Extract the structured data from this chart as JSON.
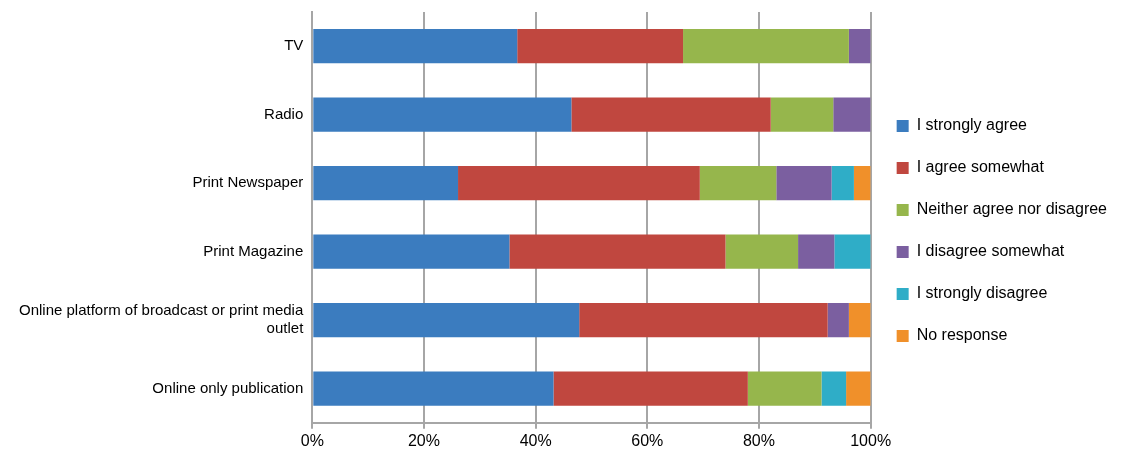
{
  "chart_data": {
    "type": "bar",
    "orientation": "horizontal",
    "stacked": true,
    "categories": [
      "TV",
      "Radio",
      "Print Newspaper",
      "Print Magazine",
      "Online platform of broadcast or print media outlet",
      "Online only publication"
    ],
    "series": [
      {
        "name": "I strongly agree",
        "color": "#3b7cbf",
        "values": [
          36.7,
          46.4,
          26.1,
          35.3,
          47.8,
          43.2
        ]
      },
      {
        "name": "I agree somewhat",
        "color": "#c0473f",
        "values": [
          29.7,
          35.7,
          43.3,
          38.7,
          44.5,
          34.8
        ]
      },
      {
        "name": "Neither agree nor disagree",
        "color": "#96b64c",
        "values": [
          29.7,
          11.2,
          13.7,
          13.0,
          0,
          13.2
        ]
      },
      {
        "name": "I disagree somewhat",
        "color": "#7b5fa0",
        "values": [
          3.9,
          6.7,
          9.9,
          6.5,
          3.8,
          0
        ]
      },
      {
        "name": "I strongly disagree",
        "color": "#2fadc7",
        "values": [
          0,
          0,
          4.0,
          6.5,
          0,
          4.4
        ]
      },
      {
        "name": "No response",
        "color": "#f0902a",
        "values": [
          0,
          0,
          3.0,
          0,
          3.9,
          4.4
        ]
      }
    ],
    "xlim": [
      0,
      100
    ],
    "xticks": [
      {
        "value": 0,
        "label": "0%"
      },
      {
        "value": 20,
        "label": "20%"
      },
      {
        "value": 40,
        "label": "40%"
      },
      {
        "value": 60,
        "label": "60%"
      },
      {
        "value": 80,
        "label": "80%"
      },
      {
        "value": 100,
        "label": "100%"
      }
    ],
    "grid": "x",
    "legend": "right"
  }
}
